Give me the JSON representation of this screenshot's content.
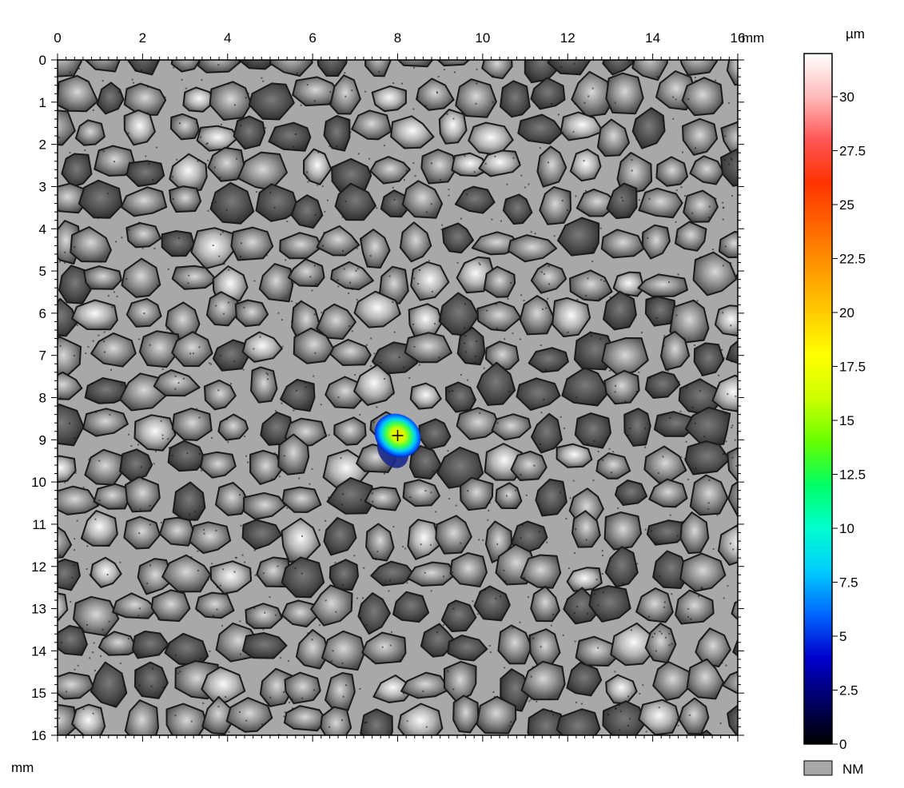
{
  "chart_data": {
    "type": "heatmap",
    "title": "",
    "x_axis": {
      "unit": "mm",
      "range": [
        0,
        16
      ],
      "ticks": [
        "0",
        "2",
        "4",
        "6",
        "8",
        "10",
        "12",
        "14",
        "16"
      ],
      "position": "top"
    },
    "y_axis": {
      "unit": "mm",
      "range": [
        0,
        16
      ],
      "ticks": [
        "0",
        "1",
        "2",
        "3",
        "4",
        "5",
        "6",
        "7",
        "8",
        "9",
        "10",
        "11",
        "12",
        "13",
        "14",
        "15",
        "16"
      ],
      "position": "left",
      "inverted": true
    },
    "colorbar": {
      "unit": "µm",
      "range": [
        0,
        32
      ],
      "ticks": [
        "0",
        "2.5",
        "5",
        "7.5",
        "10",
        "12.5",
        "15",
        "17.5",
        "20",
        "22.5",
        "25",
        "27.5",
        "30"
      ],
      "colormap": [
        "#000000",
        "#000066",
        "#0000cc",
        "#0066ff",
        "#00ccff",
        "#00ffcc",
        "#00ff66",
        "#66ff00",
        "#ccff00",
        "#ffff00",
        "#ffcc00",
        "#ff9900",
        "#ff6600",
        "#ff3300",
        "#ff5555",
        "#ffbbbb",
        "#ffffff"
      ]
    },
    "not_measured_label": "NM",
    "not_measured_color": "#a8a8a8",
    "highlighted_region": {
      "center_x": 8.0,
      "center_y": 8.9,
      "peak_value": 19,
      "marker": "cross"
    },
    "background_description": "grayscale textured grains"
  }
}
